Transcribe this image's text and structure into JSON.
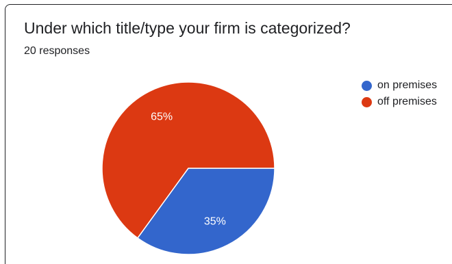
{
  "header": {
    "title": "Under which title/type your firm is categorized?",
    "responses": "20 responses"
  },
  "chart_data": {
    "type": "pie",
    "title": "Under which title/type your firm is categorized?",
    "categories": [
      "on premises",
      "off premises"
    ],
    "values": [
      35,
      65
    ],
    "labels": [
      "35%",
      "65%"
    ],
    "colors": [
      "#3366cc",
      "#dc3912"
    ],
    "legend_position": "right"
  }
}
